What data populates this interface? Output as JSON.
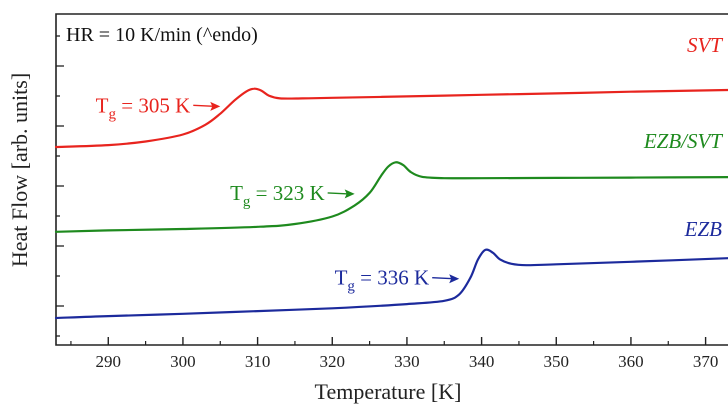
{
  "chart_data": {
    "type": "line",
    "title": "",
    "xlabel": "Temperature [K]",
    "ylabel": "Heat Flow [arb. units]",
    "xlim": [
      283,
      373
    ],
    "ylim": [
      0,
      10
    ],
    "xticks": [
      290,
      300,
      310,
      320,
      330,
      340,
      350,
      360,
      370
    ],
    "x_tick_labels": [
      "290",
      "300",
      "310",
      "320",
      "330",
      "340",
      "350",
      "360",
      "370"
    ],
    "y_tick_labels_shown": false,
    "grid": false,
    "note": "HR = 10 K/min (^endo)",
    "series": [
      {
        "name": "SVT",
        "color": "#e8241e",
        "points": [
          [
            283,
            6.15
          ],
          [
            290,
            6.22
          ],
          [
            295,
            6.35
          ],
          [
            300,
            6.6
          ],
          [
            303,
            6.95
          ],
          [
            305,
            7.35
          ],
          [
            307,
            7.85
          ],
          [
            308.5,
            8.15
          ],
          [
            309.5,
            8.25
          ],
          [
            310.5,
            8.18
          ],
          [
            311.5,
            8.0
          ],
          [
            313,
            7.9
          ],
          [
            316,
            7.9
          ],
          [
            320,
            7.92
          ],
          [
            330,
            7.97
          ],
          [
            340,
            8.03
          ],
          [
            350,
            8.08
          ],
          [
            360,
            8.14
          ],
          [
            373,
            8.2
          ]
        ],
        "tg_label": {
          "prefix": "T",
          "sub": "g",
          "suffix": " = 305 K",
          "x": 305,
          "y": 7.65
        }
      },
      {
        "name": "EZB/SVT",
        "color": "#1e8a1e",
        "points": [
          [
            283,
            3.1
          ],
          [
            290,
            3.15
          ],
          [
            300,
            3.2
          ],
          [
            310,
            3.28
          ],
          [
            315,
            3.38
          ],
          [
            320,
            3.65
          ],
          [
            323,
            4.05
          ],
          [
            325,
            4.5
          ],
          [
            326.5,
            5.1
          ],
          [
            327.5,
            5.45
          ],
          [
            328.5,
            5.6
          ],
          [
            329.5,
            5.5
          ],
          [
            330.5,
            5.25
          ],
          [
            332,
            5.08
          ],
          [
            335,
            5.03
          ],
          [
            340,
            5.03
          ],
          [
            350,
            5.04
          ],
          [
            360,
            5.05
          ],
          [
            373,
            5.07
          ]
        ],
        "tg_label": {
          "prefix": "T",
          "sub": "g",
          "suffix": " = 323 K",
          "x": 323,
          "y": 4.5
        }
      },
      {
        "name": "EZB",
        "color": "#1c2a9c",
        "points": [
          [
            283,
            0.0
          ],
          [
            290,
            0.07
          ],
          [
            300,
            0.15
          ],
          [
            310,
            0.25
          ],
          [
            320,
            0.35
          ],
          [
            330,
            0.5
          ],
          [
            335,
            0.62
          ],
          [
            337,
            0.85
          ],
          [
            338.5,
            1.45
          ],
          [
            339.5,
            2.1
          ],
          [
            340.5,
            2.45
          ],
          [
            341.5,
            2.35
          ],
          [
            342.5,
            2.1
          ],
          [
            344,
            1.95
          ],
          [
            346,
            1.9
          ],
          [
            350,
            1.93
          ],
          [
            360,
            2.02
          ],
          [
            373,
            2.15
          ]
        ],
        "tg_label": {
          "prefix": "T",
          "sub": "g",
          "suffix": " = 336 K",
          "x": 337,
          "y": 1.45
        }
      }
    ]
  }
}
